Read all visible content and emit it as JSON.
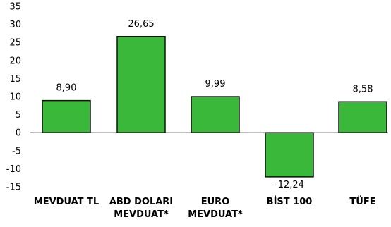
{
  "chart_data": {
    "type": "bar",
    "categories": [
      [
        "MEVDUAT TL"
      ],
      [
        "ABD DOLARI",
        "MEVDUAT*"
      ],
      [
        "EURO",
        "MEVDUAT*"
      ],
      [
        "BİST 100"
      ],
      [
        "TÜFE"
      ]
    ],
    "values": [
      8.9,
      26.65,
      9.99,
      -12.24,
      8.58
    ],
    "value_labels": [
      "8,90",
      "26,65",
      "9,99",
      "-12,24",
      "8,58"
    ],
    "yticks": [
      35,
      30,
      25,
      20,
      15,
      10,
      5,
      0,
      -5,
      -10,
      -15
    ],
    "ylim": [
      -15,
      35
    ],
    "grid": false,
    "legend": "none",
    "colors": {
      "bar_fill": "#3ab83a",
      "bar_stroke": "#111111",
      "axis": "#000000"
    }
  }
}
